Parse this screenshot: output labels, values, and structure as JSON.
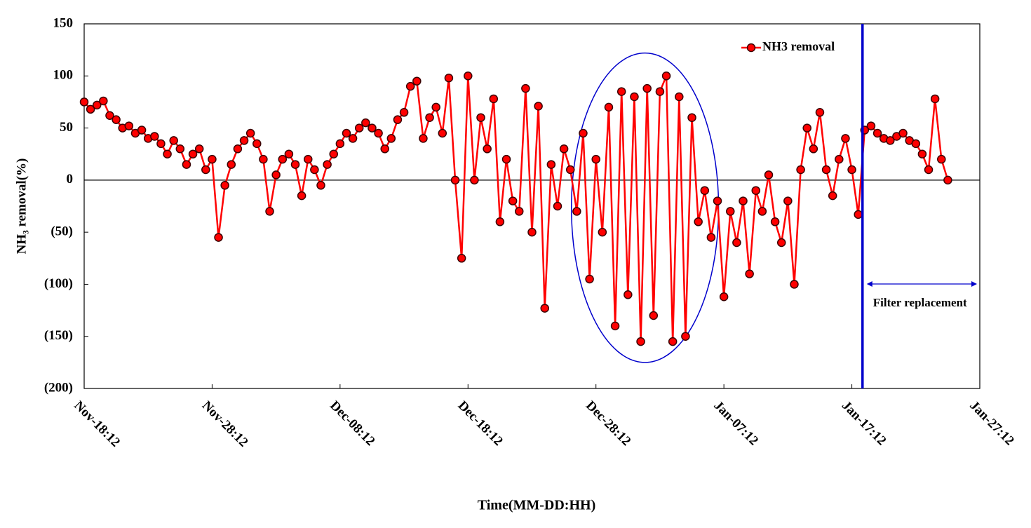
{
  "chart_data": {
    "type": "line",
    "x_label": "Time(MM-DD:HH)",
    "y_label": "NH₃ removal(%)",
    "xlim": [
      "Nov-18:12",
      "Jan-27:12"
    ],
    "xticks": [
      "Nov-18:12",
      "Nov-28:12",
      "Dec-08:12",
      "Dec-18:12",
      "Dec-28:12",
      "Jan-07:12",
      "Jan-17:12",
      "Jan-27:12"
    ],
    "ylim": [
      -200,
      150
    ],
    "yticks": [
      150,
      100,
      50,
      0,
      {
        "value": -50,
        "label": "(50)"
      },
      {
        "value": -100,
        "label": "(100)"
      },
      {
        "value": -150,
        "label": "(150)"
      },
      {
        "value": -200,
        "label": "(200)"
      }
    ],
    "negative_tick_color": "#e41a1a",
    "zero_line": true,
    "legend": "top-right",
    "x": [
      "Nov-18:12",
      "Nov-19:00",
      "Nov-19:12",
      "Nov-20:00",
      "Nov-20:12",
      "Nov-21:00",
      "Nov-21:12",
      "Nov-22:00",
      "Nov-22:12",
      "Nov-23:00",
      "Nov-23:12",
      "Nov-24:00",
      "Nov-24:12",
      "Nov-25:00",
      "Nov-25:12",
      "Nov-26:00",
      "Nov-26:12",
      "Nov-27:00",
      "Nov-27:12",
      "Nov-28:00",
      "Nov-28:12",
      "Nov-29:00",
      "Nov-29:12",
      "Nov-30:00",
      "Nov-30:12",
      "Dec-01:00",
      "Dec-01:12",
      "Dec-02:00",
      "Dec-02:12",
      "Dec-03:00",
      "Dec-03:12",
      "Dec-04:00",
      "Dec-04:12",
      "Dec-05:00",
      "Dec-05:12",
      "Dec-06:00",
      "Dec-06:12",
      "Dec-07:00",
      "Dec-07:12",
      "Dec-08:00",
      "Dec-08:12",
      "Dec-09:00",
      "Dec-09:12",
      "Dec-10:00",
      "Dec-10:12",
      "Dec-11:00",
      "Dec-11:12",
      "Dec-12:00",
      "Dec-12:12",
      "Dec-13:00",
      "Dec-13:12",
      "Dec-14:00",
      "Dec-14:12",
      "Dec-15:00",
      "Dec-15:12",
      "Dec-16:00",
      "Dec-16:12",
      "Dec-17:00",
      "Dec-17:12",
      "Dec-18:00",
      "Dec-18:12",
      "Dec-19:00",
      "Dec-19:12",
      "Dec-20:00",
      "Dec-20:12",
      "Dec-21:00",
      "Dec-21:12",
      "Dec-22:00",
      "Dec-22:12",
      "Dec-23:00",
      "Dec-23:12",
      "Dec-24:00",
      "Dec-24:12",
      "Dec-25:00",
      "Dec-25:12",
      "Dec-26:00",
      "Dec-26:12",
      "Dec-27:00",
      "Dec-27:12",
      "Dec-28:00",
      "Dec-28:12",
      "Dec-29:00",
      "Dec-29:12",
      "Dec-30:00",
      "Dec-30:12",
      "Dec-31:00",
      "Dec-31:12",
      "Jan-01:00",
      "Jan-01:12",
      "Jan-02:00",
      "Jan-02:12",
      "Jan-03:00",
      "Jan-03:12",
      "Jan-04:00",
      "Jan-04:12",
      "Jan-05:00",
      "Jan-05:12",
      "Jan-06:00",
      "Jan-06:12",
      "Jan-07:00",
      "Jan-07:12",
      "Jan-08:00",
      "Jan-08:12",
      "Jan-09:00",
      "Jan-09:12",
      "Jan-10:00",
      "Jan-10:12",
      "Jan-11:00",
      "Jan-11:12",
      "Jan-12:00",
      "Jan-12:12",
      "Jan-13:00",
      "Jan-13:12",
      "Jan-14:00",
      "Jan-14:12",
      "Jan-15:00",
      "Jan-15:12",
      "Jan-16:00",
      "Jan-16:12",
      "Jan-17:00",
      "Jan-17:12",
      "Jan-18:00",
      "Jan-18:12",
      "Jan-19:00",
      "Jan-19:12",
      "Jan-20:00",
      "Jan-20:12",
      "Jan-21:00",
      "Jan-21:12",
      "Jan-22:00",
      "Jan-22:12",
      "Jan-23:00",
      "Jan-23:12",
      "Jan-24:00",
      "Jan-24:12",
      "Jan-25:00"
    ],
    "series": [
      {
        "name": "NH3 removal",
        "color": "#ff0000",
        "marker_edge": "#3a0000",
        "values": [
          75,
          68,
          72,
          76,
          62,
          58,
          50,
          52,
          45,
          48,
          40,
          42,
          35,
          25,
          38,
          30,
          15,
          25,
          30,
          10,
          20,
          -55,
          -5,
          15,
          30,
          38,
          45,
          35,
          20,
          -30,
          5,
          20,
          25,
          15,
          -15,
          20,
          10,
          -5,
          15,
          25,
          35,
          45,
          40,
          50,
          55,
          50,
          45,
          30,
          40,
          58,
          65,
          90,
          95,
          40,
          60,
          70,
          45,
          98,
          0,
          -75,
          100,
          0,
          60,
          30,
          78,
          -40,
          20,
          -20,
          -30,
          88,
          -50,
          71,
          -123,
          15,
          -25,
          30,
          10,
          -30,
          45,
          -95,
          20,
          -50,
          70,
          -140,
          85,
          -110,
          80,
          -155,
          88,
          -130,
          85,
          100,
          -155,
          80,
          -150,
          60,
          -40,
          -10,
          -55,
          -20,
          -112,
          -30,
          -60,
          -20,
          -90,
          -10,
          -30,
          5,
          -40,
          -60,
          -20,
          -100,
          10,
          50,
          30,
          65,
          10,
          -15,
          20,
          40,
          10,
          -33,
          48,
          52,
          45,
          40,
          38,
          42,
          45,
          38,
          35,
          25,
          10,
          78,
          20,
          0
        ]
      }
    ],
    "annotations": [
      {
        "text": "Filter replacement",
        "x": "Jan-18:08",
        "color": "#0000cc"
      }
    ],
    "ellipse": {
      "x": [
        "Dec-26:14",
        "Jan-07:02"
      ],
      "y": [
        -175,
        122
      ],
      "color": "#0000cc"
    }
  }
}
